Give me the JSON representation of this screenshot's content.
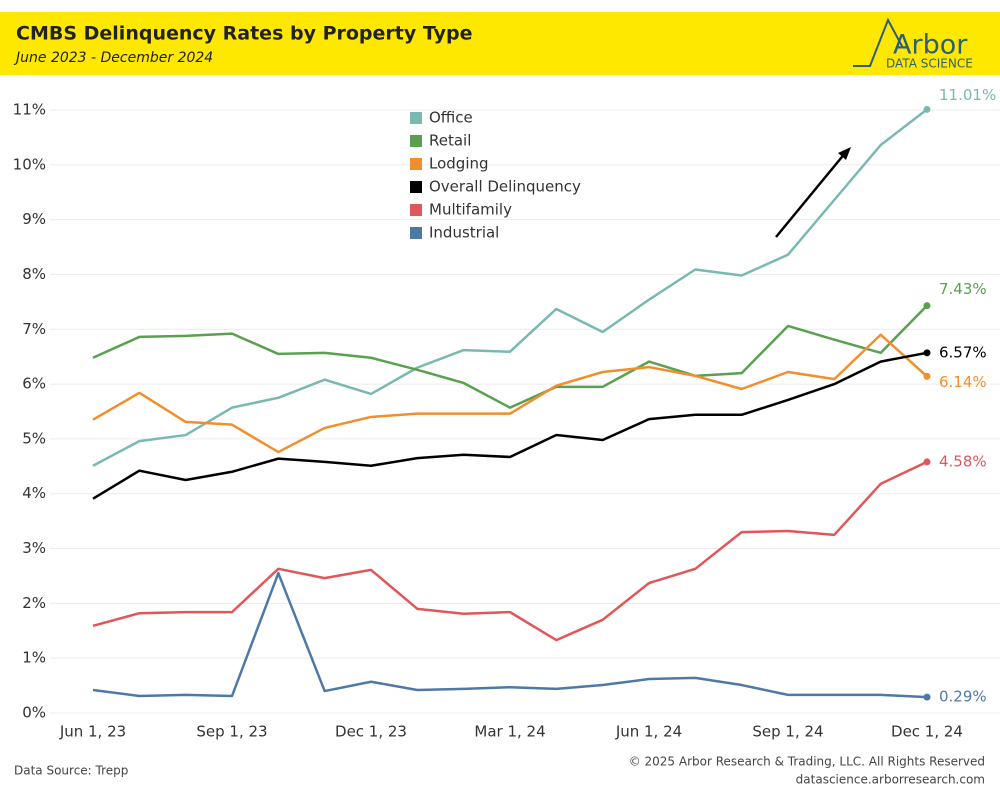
{
  "header": {
    "title": "CMBS Delinquency Rates by Property Type",
    "subtitle": "June 2023 - December 2024",
    "logo": "Arbor",
    "logo_sub": "DATA SCIENCE"
  },
  "chart_data": {
    "type": "line",
    "categories": [
      "Jun 1, 23",
      null,
      null,
      "Sep 1, 23",
      null,
      null,
      "Dec 1, 23",
      null,
      null,
      "Mar 1, 24",
      null,
      null,
      "Jun 1, 24",
      null,
      null,
      "Sep 1, 24",
      null,
      null,
      "Dec 1, 24"
    ],
    "series": [
      {
        "name": "Office",
        "color": "#7ab8b2",
        "values": [
          4.51,
          4.96,
          5.07,
          5.57,
          5.75,
          6.08,
          5.82,
          6.3,
          6.62,
          6.59,
          7.37,
          6.95,
          7.54,
          8.09,
          7.98,
          8.36,
          9.36,
          10.36,
          11.01
        ],
        "value_labels": [
          null,
          null,
          null,
          null,
          null,
          null,
          null,
          null,
          null,
          null,
          null,
          null,
          null,
          null,
          null,
          null,
          null,
          null,
          "11.01%"
        ]
      },
      {
        "name": "Retail",
        "color": "#59a14f",
        "values": [
          6.48,
          6.86,
          6.88,
          6.92,
          6.55,
          6.57,
          6.48,
          6.26,
          6.02,
          5.57,
          5.95,
          5.95,
          6.41,
          6.15,
          6.2,
          7.06,
          6.81,
          6.57,
          7.43
        ],
        "value_labels": [
          null,
          null,
          null,
          null,
          null,
          null,
          null,
          null,
          null,
          null,
          null,
          null,
          null,
          null,
          null,
          null,
          null,
          null,
          "7.43%"
        ]
      },
      {
        "name": "Lodging",
        "color": "#f28e2b",
        "values": [
          5.35,
          5.84,
          5.31,
          5.26,
          4.76,
          5.2,
          5.4,
          5.46,
          5.46,
          5.46,
          5.97,
          6.22,
          6.31,
          6.15,
          5.91,
          6.22,
          6.09,
          6.9,
          6.14
        ],
        "value_labels": [
          null,
          null,
          null,
          null,
          null,
          null,
          null,
          null,
          null,
          null,
          null,
          null,
          null,
          null,
          null,
          null,
          null,
          null,
          "6.14%"
        ]
      },
      {
        "name": "Overall Delinquency",
        "color": "#000000",
        "values": [
          3.91,
          4.42,
          4.25,
          4.4,
          4.64,
          4.58,
          4.51,
          4.65,
          4.71,
          4.67,
          5.07,
          4.98,
          5.36,
          5.44,
          5.44,
          5.71,
          6.0,
          6.41,
          6.57
        ],
        "value_labels": [
          null,
          null,
          null,
          null,
          null,
          null,
          null,
          null,
          null,
          null,
          null,
          null,
          null,
          null,
          null,
          null,
          null,
          null,
          "6.57%"
        ]
      },
      {
        "name": "Multifamily",
        "color": "#e15759",
        "values": [
          1.59,
          1.82,
          1.84,
          1.84,
          2.63,
          2.46,
          2.61,
          1.9,
          1.81,
          1.84,
          1.33,
          1.7,
          2.37,
          2.63,
          3.3,
          3.32,
          3.25,
          4.18,
          4.58
        ],
        "value_labels": [
          null,
          null,
          null,
          null,
          null,
          null,
          null,
          null,
          null,
          null,
          null,
          null,
          null,
          null,
          null,
          null,
          null,
          null,
          "4.58%"
        ]
      },
      {
        "name": "Industrial",
        "color": "#4e79a7",
        "values": [
          0.42,
          0.31,
          0.33,
          0.31,
          2.55,
          0.4,
          0.57,
          0.42,
          0.44,
          0.47,
          0.44,
          0.51,
          0.62,
          0.64,
          0.51,
          0.33,
          0.33,
          0.33,
          0.29
        ],
        "value_labels": [
          null,
          null,
          null,
          null,
          null,
          null,
          null,
          null,
          null,
          null,
          null,
          null,
          null,
          null,
          null,
          null,
          null,
          null,
          "0.29%"
        ]
      }
    ],
    "ylim": [
      0,
      11.2
    ],
    "yticks": [
      {
        "value": 0,
        "label": "0%"
      },
      {
        "value": 1,
        "label": "1%"
      },
      {
        "value": 2,
        "label": "2%"
      },
      {
        "value": 3,
        "label": "3%"
      },
      {
        "value": 4,
        "label": "4%"
      },
      {
        "value": 5,
        "label": "5%"
      },
      {
        "value": 6,
        "label": "6%"
      },
      {
        "value": 7,
        "label": "7%"
      },
      {
        "value": 8,
        "label": "8%"
      },
      {
        "value": 9,
        "label": "9%"
      },
      {
        "value": 10,
        "label": "10%"
      },
      {
        "value": 11,
        "label": "11%"
      }
    ],
    "grid": true,
    "legend": "top-center"
  },
  "footer": {
    "source": "Data Source: Trepp",
    "copyright": "© 2025 Arbor Research & Trading, LLC. All Rights Reserved",
    "site": "datascience.arborresearch.com"
  }
}
